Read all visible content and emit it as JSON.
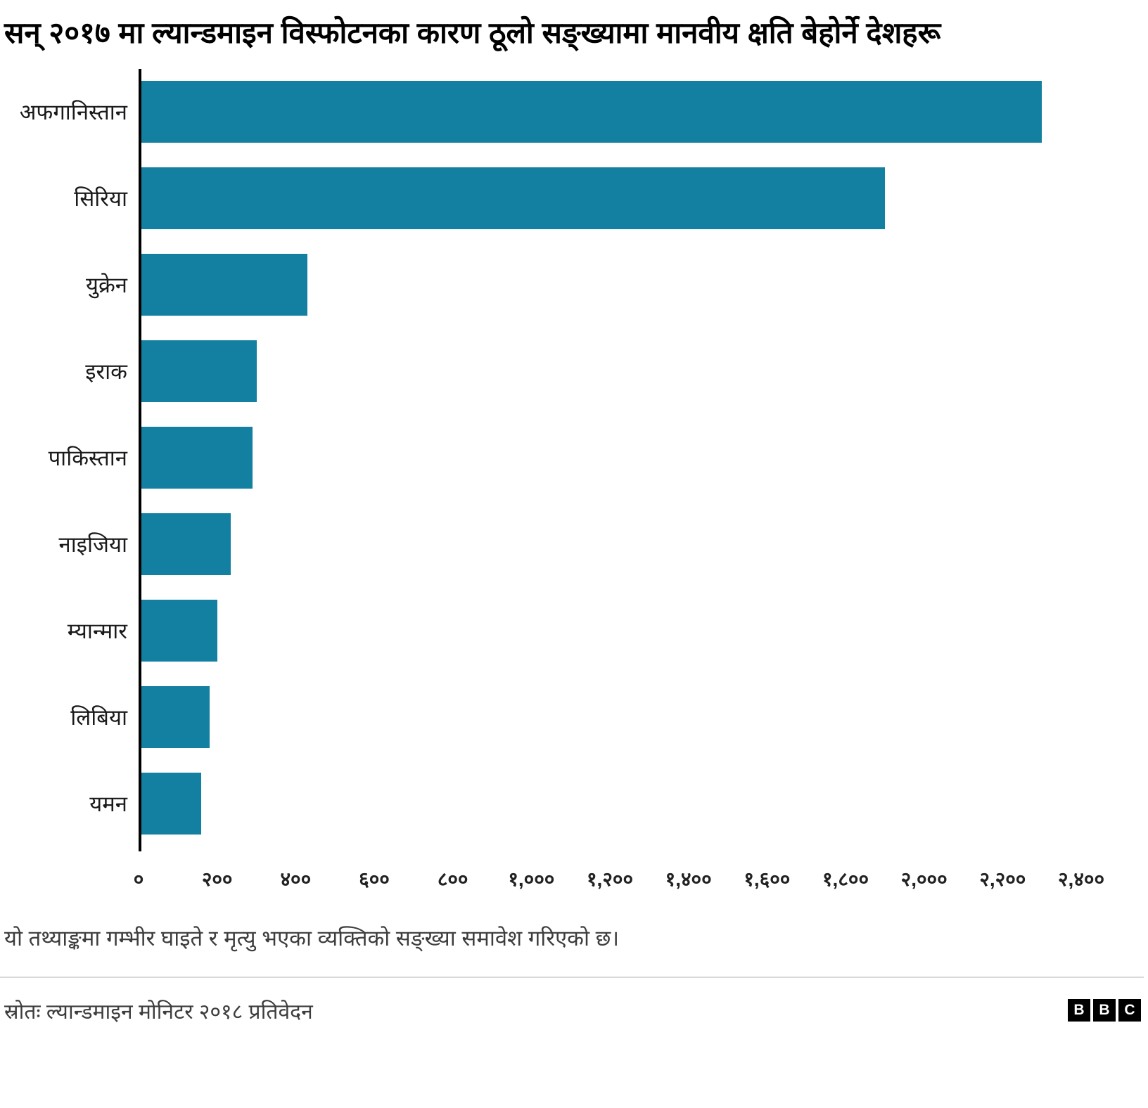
{
  "title": "सन् २०१७ मा ल्यान्डमाइन विस्फोटनका कारण ठूलो सङ्ख्यामा मानवीय क्षति बेहोर्ने देशहरू",
  "chart_data": {
    "type": "bar",
    "orientation": "horizontal",
    "categories": [
      "अफगानिस्तान",
      "सिरिया",
      "युक्रेन",
      "इराक",
      "पाकिस्तान",
      "नाइजिया",
      "म्यान्मार",
      "लिबिया",
      "यमन"
    ],
    "values": [
      2300,
      1900,
      430,
      300,
      290,
      235,
      200,
      180,
      160
    ],
    "xlim": [
      0,
      2400
    ],
    "tick_step": 200,
    "tick_labels": [
      "०",
      "२००",
      "४००",
      "६००",
      "८००",
      "१,०००",
      "१,२००",
      "१,४००",
      "१,६००",
      "१,८००",
      "२,०००",
      "२,२००",
      "२,४००"
    ],
    "bar_color": "#1380A1",
    "grid": false,
    "legend": "none",
    "title": "सन् २०१७ मा ल्यान्डमाइन विस्फोटनका कारण ठूलो सङ्ख्यामा मानवीय क्षति बेहोर्ने देशहरू",
    "xlabel": "",
    "ylabel": ""
  },
  "footnote": "यो तथ्याङ्कमा गम्भीर घाइते र मृत्यु भएका व्यक्तिको सङ्ख्या समावेश गरिएको छ।",
  "source": "स्रोतः ल्यान्डमाइन मोनिटर २०१८ प्रतिवेदन",
  "logo": {
    "letters": [
      "B",
      "B",
      "C"
    ]
  }
}
